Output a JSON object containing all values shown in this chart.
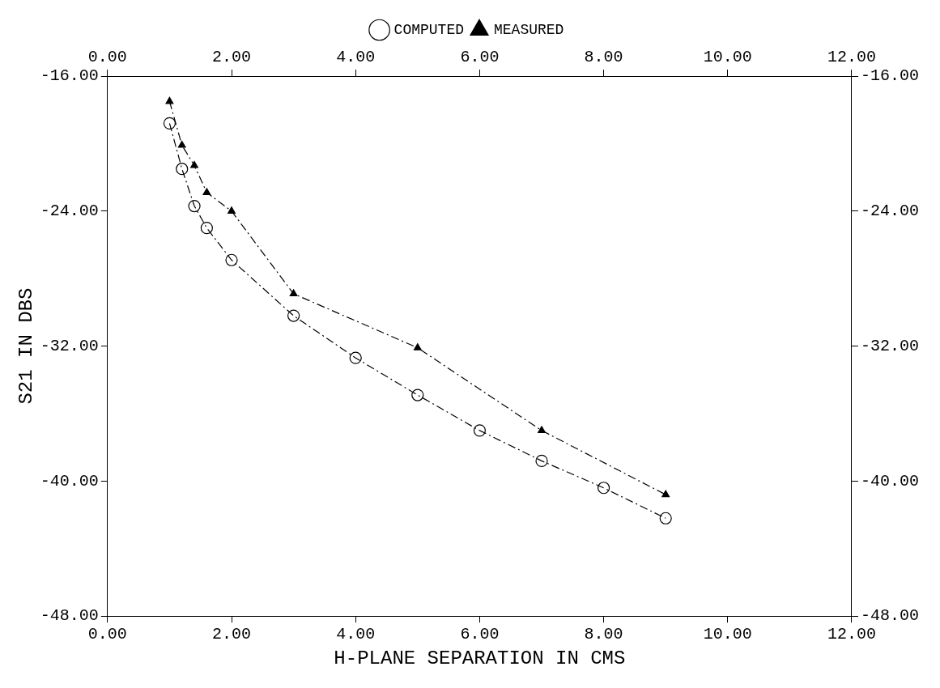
{
  "chart_data": {
    "type": "line",
    "xlabel": "H-PLANE SEPARATION IN CMS",
    "ylabel": "S21 IN DBS",
    "xlim": [
      0,
      12
    ],
    "xticks": [
      {
        "value": 0,
        "label": "0.00"
      },
      {
        "value": 2,
        "label": "2.00"
      },
      {
        "value": 4,
        "label": "4.00"
      },
      {
        "value": 6,
        "label": "6.00"
      },
      {
        "value": 8,
        "label": "8.00"
      },
      {
        "value": 10,
        "label": "10.00"
      },
      {
        "value": 12,
        "label": "12.00"
      }
    ],
    "x2lim": [
      0,
      12
    ],
    "x2ticks": [
      {
        "value": 0,
        "label": "0.00"
      },
      {
        "value": 2,
        "label": "2.00"
      },
      {
        "value": 4,
        "label": "4.00"
      },
      {
        "value": 6,
        "label": "6.00"
      },
      {
        "value": 8,
        "label": "8.00"
      },
      {
        "value": 10,
        "label": "10.00"
      },
      {
        "value": 12,
        "label": "12.00"
      }
    ],
    "ylim": [
      -48,
      -16
    ],
    "yticks": [
      {
        "value": -48,
        "label": "-48.00"
      },
      {
        "value": -40,
        "label": "-40.00"
      },
      {
        "value": -32,
        "label": "-32.00"
      },
      {
        "value": -24,
        "label": "-24.00"
      },
      {
        "value": -16,
        "label": "-16.00"
      }
    ],
    "y2lim": [
      -48,
      -16
    ],
    "y2ticks": [
      {
        "value": -48,
        "label": "-48.00"
      },
      {
        "value": -40,
        "label": "-40.00"
      },
      {
        "value": -32,
        "label": "-32.00"
      },
      {
        "value": -24,
        "label": "-24.00"
      },
      {
        "value": -16,
        "label": "-16.00"
      }
    ],
    "grid": false,
    "legend": "top",
    "line_style": "dashed",
    "series": [
      {
        "name": "COMPUTED",
        "color": "#000000",
        "marker": "circle",
        "x": [
          1.0,
          1.2,
          1.4,
          1.6,
          2,
          3,
          4,
          5,
          6,
          7,
          8,
          9
        ],
        "values": [
          -18.8,
          -21.5,
          -23.7,
          -25.0,
          -26.9,
          -30.2,
          -32.7,
          -34.9,
          -37.0,
          -38.8,
          -40.4,
          -42.2
        ]
      },
      {
        "name": "MEASURED",
        "color": "#000000",
        "marker": "triangle",
        "x": [
          1.0,
          1.2,
          1.4,
          1.6,
          2,
          3,
          5,
          7,
          9
        ],
        "values": [
          -17.5,
          -20.1,
          -21.3,
          -22.9,
          -24.0,
          -28.9,
          -32.1,
          -37.0,
          -40.8
        ]
      }
    ]
  }
}
